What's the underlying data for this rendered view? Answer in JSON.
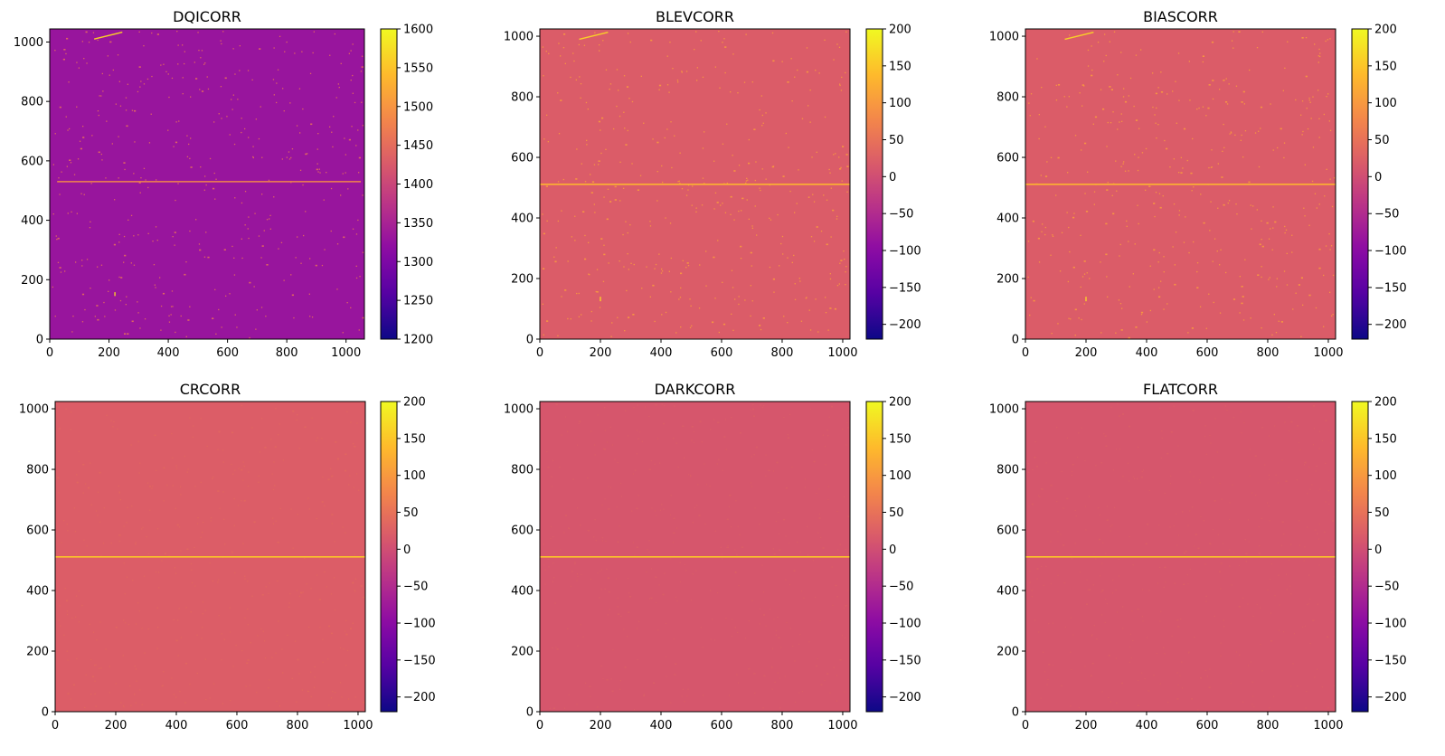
{
  "figure": {
    "colormap": "plasma"
  },
  "chart_data": [
    {
      "type": "heatmap",
      "title": "DQICORR",
      "xlim": [
        0,
        1062
      ],
      "ylim": [
        0,
        1044
      ],
      "xticks": [
        0,
        200,
        400,
        600,
        800,
        1000
      ],
      "yticks": [
        0,
        200,
        400,
        600,
        800,
        1000
      ],
      "colorbar": {
        "min": 1200,
        "max": 1600,
        "ticks": [
          1200,
          1250,
          1300,
          1350,
          1400,
          1450,
          1500,
          1550,
          1600
        ]
      },
      "background_value": 1330,
      "streak_value": 1450,
      "line": {
        "y": 530,
        "x_start": 25,
        "x_end": 1050,
        "value": 1480
      },
      "features": [
        {
          "x1": 150,
          "y1": 1010,
          "x2": 245,
          "y2": 1033,
          "value": 1560
        },
        {
          "x1": 220,
          "y1": 158,
          "x2": 220,
          "y2": 145,
          "value": 1560
        }
      ]
    },
    {
      "type": "heatmap",
      "title": "BLEVCORR",
      "xlim": [
        0,
        1024
      ],
      "ylim": [
        0,
        1024
      ],
      "xticks": [
        0,
        200,
        400,
        600,
        800,
        1000
      ],
      "yticks": [
        0,
        200,
        400,
        600,
        800,
        1000
      ],
      "colorbar": {
        "min": -220,
        "max": 200,
        "ticks": [
          -200,
          -150,
          -100,
          -50,
          0,
          50,
          100,
          150,
          200
        ]
      },
      "background_value": 20,
      "streak_value": 100,
      "line": {
        "y": 511,
        "x_start": 0,
        "x_end": 1024,
        "value": 130
      },
      "features": [
        {
          "x1": 130,
          "y1": 990,
          "x2": 225,
          "y2": 1013,
          "value": 160
        },
        {
          "x1": 200,
          "y1": 140,
          "x2": 200,
          "y2": 125,
          "value": 160
        }
      ]
    },
    {
      "type": "heatmap",
      "title": "BIASCORR",
      "xlim": [
        0,
        1024
      ],
      "ylim": [
        0,
        1024
      ],
      "xticks": [
        0,
        200,
        400,
        600,
        800,
        1000
      ],
      "yticks": [
        0,
        200,
        400,
        600,
        800,
        1000
      ],
      "colorbar": {
        "min": -220,
        "max": 200,
        "ticks": [
          -200,
          -150,
          -100,
          -50,
          0,
          50,
          100,
          150,
          200
        ]
      },
      "background_value": 20,
      "streak_value": 100,
      "line": {
        "y": 511,
        "x_start": 0,
        "x_end": 1024,
        "value": 130
      },
      "features": [
        {
          "x1": 130,
          "y1": 990,
          "x2": 225,
          "y2": 1013,
          "value": 160
        },
        {
          "x1": 200,
          "y1": 140,
          "x2": 200,
          "y2": 125,
          "value": 160
        }
      ]
    },
    {
      "type": "heatmap",
      "title": "CRCORR",
      "xlim": [
        0,
        1024
      ],
      "ylim": [
        0,
        1024
      ],
      "xticks": [
        0,
        200,
        400,
        600,
        800,
        1000
      ],
      "yticks": [
        0,
        200,
        400,
        600,
        800,
        1000
      ],
      "colorbar": {
        "min": -220,
        "max": 200,
        "ticks": [
          -200,
          -150,
          -100,
          -50,
          0,
          50,
          100,
          150,
          200
        ]
      },
      "background_value": 22,
      "streak_value": 60,
      "line": {
        "y": 511,
        "x_start": 0,
        "x_end": 1024,
        "value": 150
      },
      "features": []
    },
    {
      "type": "heatmap",
      "title": "DARKCORR",
      "xlim": [
        0,
        1024
      ],
      "ylim": [
        0,
        1024
      ],
      "xticks": [
        0,
        200,
        400,
        600,
        800,
        1000
      ],
      "yticks": [
        0,
        200,
        400,
        600,
        800,
        1000
      ],
      "colorbar": {
        "min": -220,
        "max": 200,
        "ticks": [
          -200,
          -150,
          -100,
          -50,
          0,
          50,
          100,
          150,
          200
        ]
      },
      "background_value": 12,
      "streak_value": 40,
      "line": {
        "y": 511,
        "x_start": 0,
        "x_end": 1024,
        "value": 150
      },
      "features": []
    },
    {
      "type": "heatmap",
      "title": "FLATCORR",
      "xlim": [
        0,
        1024
      ],
      "ylim": [
        0,
        1024
      ],
      "xticks": [
        0,
        200,
        400,
        600,
        800,
        1000
      ],
      "yticks": [
        0,
        200,
        400,
        600,
        800,
        1000
      ],
      "colorbar": {
        "min": -220,
        "max": 200,
        "ticks": [
          -200,
          -150,
          -100,
          -50,
          0,
          50,
          100,
          150,
          200
        ]
      },
      "background_value": 12,
      "streak_value": 40,
      "line": {
        "y": 511,
        "x_start": 0,
        "x_end": 1024,
        "value": 150
      },
      "features": []
    }
  ]
}
